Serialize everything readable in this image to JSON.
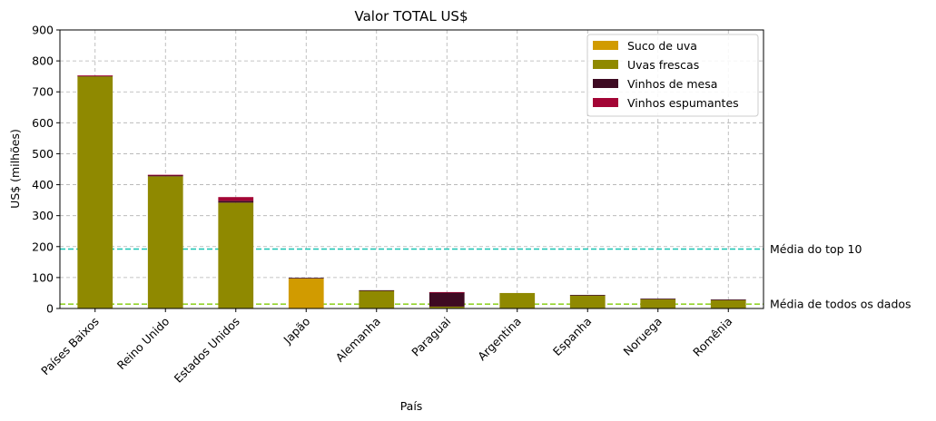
{
  "chart_data": {
    "type": "bar",
    "stacked": true,
    "title": "Valor TOTAL US$",
    "xlabel": "País",
    "ylabel": "US$ (milhões)",
    "ylim": [
      0,
      900
    ],
    "yticks": [
      0,
      100,
      200,
      300,
      400,
      500,
      600,
      700,
      800,
      900
    ],
    "grid": true,
    "legend_position": "top-right",
    "categories": [
      "Países Baixos",
      "Reino Unido",
      "Estados Unidos",
      "Japão",
      "Alemanha",
      "Paraguai",
      "Argentina",
      "Espanha",
      "Noruega",
      "Romênia"
    ],
    "series": [
      {
        "name": "Suco de uva",
        "color": "#d19b00",
        "values": [
          0,
          0,
          0,
          98,
          0,
          0,
          0,
          0,
          0,
          0
        ]
      },
      {
        "name": "Uvas frescas",
        "color": "#8f8900",
        "values": [
          750,
          427,
          342,
          0,
          58,
          6,
          50,
          42,
          30,
          28
        ]
      },
      {
        "name": "Vinhos de mesa",
        "color": "#3e0a22",
        "values": [
          2,
          4,
          6,
          1,
          1,
          46,
          0,
          2,
          2,
          1
        ]
      },
      {
        "name": "Vinhos espumantes",
        "color": "#a30535",
        "values": [
          1,
          1,
          12,
          0,
          0,
          1,
          0,
          0,
          0,
          0
        ]
      }
    ],
    "reference_lines": [
      {
        "label": "Média do top 10",
        "value": 192,
        "color": "#19c3b3"
      },
      {
        "label": "Média de todos os dados",
        "value": 14,
        "color": "#92d22a"
      }
    ]
  }
}
